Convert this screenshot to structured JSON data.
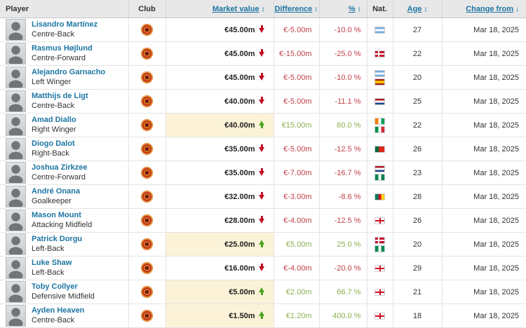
{
  "colors": {
    "link_blue": "#1d75a3",
    "negative_red": "#c0404a",
    "positive_green": "#8cb04e",
    "arrow_down_red": "#c10d26",
    "arrow_up_green": "#4ba41a",
    "highlight_cream": "#fbf2d8",
    "header_bg": "#e8e8e8"
  },
  "table": {
    "columns": {
      "player": "Player",
      "club": "Club",
      "market_value": "Market value",
      "difference": "Difference",
      "percent": "%",
      "nat": "Nat.",
      "age": "Age",
      "change_from": "Change from"
    },
    "sort_icons": {
      "sortable": "↕",
      "active_desc": "↓"
    },
    "rows": [
      {
        "name": "Lisandro Martínez",
        "position": "Centre-Back",
        "club": "Manchester United",
        "market_value": "€45.00m",
        "trend": "down",
        "difference": "€-5.00m",
        "percent": "-10.0 %",
        "nationalities": [
          "Argentina"
        ],
        "age": "27",
        "change_from": "Mar 18, 2025"
      },
      {
        "name": "Rasmus Højlund",
        "position": "Centre-Forward",
        "club": "Manchester United",
        "market_value": "€45.00m",
        "trend": "down",
        "difference": "€-15.00m",
        "percent": "-25.0 %",
        "nationalities": [
          "Denmark"
        ],
        "age": "22",
        "change_from": "Mar 18, 2025"
      },
      {
        "name": "Alejandro Garnacho",
        "position": "Left Winger",
        "club": "Manchester United",
        "market_value": "€45.00m",
        "trend": "down",
        "difference": "€-5.00m",
        "percent": "-10.0 %",
        "nationalities": [
          "Argentina",
          "Spain"
        ],
        "age": "20",
        "change_from": "Mar 18, 2025"
      },
      {
        "name": "Matthijs de Ligt",
        "position": "Centre-Back",
        "club": "Manchester United",
        "market_value": "€40.00m",
        "trend": "down",
        "difference": "€-5.00m",
        "percent": "-11.1 %",
        "nationalities": [
          "Netherlands"
        ],
        "age": "25",
        "change_from": "Mar 18, 2025"
      },
      {
        "name": "Amad Diallo",
        "position": "Right Winger",
        "club": "Manchester United",
        "market_value": "€40.00m",
        "trend": "up",
        "difference": "€15.00m",
        "percent": "60.0 %",
        "nationalities": [
          "Ivory Coast",
          "Italy"
        ],
        "age": "22",
        "change_from": "Mar 18, 2025"
      },
      {
        "name": "Diogo Dalot",
        "position": "Right-Back",
        "club": "Manchester United",
        "market_value": "€35.00m",
        "trend": "down",
        "difference": "€-5.00m",
        "percent": "-12.5 %",
        "nationalities": [
          "Portugal"
        ],
        "age": "26",
        "change_from": "Mar 18, 2025"
      },
      {
        "name": "Joshua Zirkzee",
        "position": "Centre-Forward",
        "club": "Manchester United",
        "market_value": "€35.00m",
        "trend": "down",
        "difference": "€-7.00m",
        "percent": "-16.7 %",
        "nationalities": [
          "Netherlands",
          "Nigeria"
        ],
        "age": "23",
        "change_from": "Mar 18, 2025"
      },
      {
        "name": "André Onana",
        "position": "Goalkeeper",
        "club": "Manchester United",
        "market_value": "€32.00m",
        "trend": "down",
        "difference": "€-3.00m",
        "percent": "-8.6 %",
        "nationalities": [
          "Cameroon"
        ],
        "age": "28",
        "change_from": "Mar 18, 2025"
      },
      {
        "name": "Mason Mount",
        "position": "Attacking Midfield",
        "club": "Manchester United",
        "market_value": "€28.00m",
        "trend": "down",
        "difference": "€-4.00m",
        "percent": "-12.5 %",
        "nationalities": [
          "England"
        ],
        "age": "26",
        "change_from": "Mar 18, 2025"
      },
      {
        "name": "Patrick Dorgu",
        "position": "Left-Back",
        "club": "Manchester United",
        "market_value": "€25.00m",
        "trend": "up",
        "difference": "€5.00m",
        "percent": "25.0 %",
        "nationalities": [
          "Denmark",
          "Nigeria"
        ],
        "age": "20",
        "change_from": "Mar 18, 2025"
      },
      {
        "name": "Luke Shaw",
        "position": "Left-Back",
        "club": "Manchester United",
        "market_value": "€16.00m",
        "trend": "down",
        "difference": "€-4.00m",
        "percent": "-20.0 %",
        "nationalities": [
          "England"
        ],
        "age": "29",
        "change_from": "Mar 18, 2025"
      },
      {
        "name": "Toby Collyer",
        "position": "Defensive Midfield",
        "club": "Manchester United",
        "market_value": "€5.00m",
        "trend": "up",
        "difference": "€2.00m",
        "percent": "66.7 %",
        "nationalities": [
          "England"
        ],
        "age": "21",
        "change_from": "Mar 18, 2025"
      },
      {
        "name": "Ayden Heaven",
        "position": "Centre-Back",
        "club": "Manchester United",
        "market_value": "€1.50m",
        "trend": "up",
        "difference": "€1.20m",
        "percent": "400.0 %",
        "nationalities": [
          "England"
        ],
        "age": "18",
        "change_from": "Mar 18, 2025"
      }
    ]
  }
}
